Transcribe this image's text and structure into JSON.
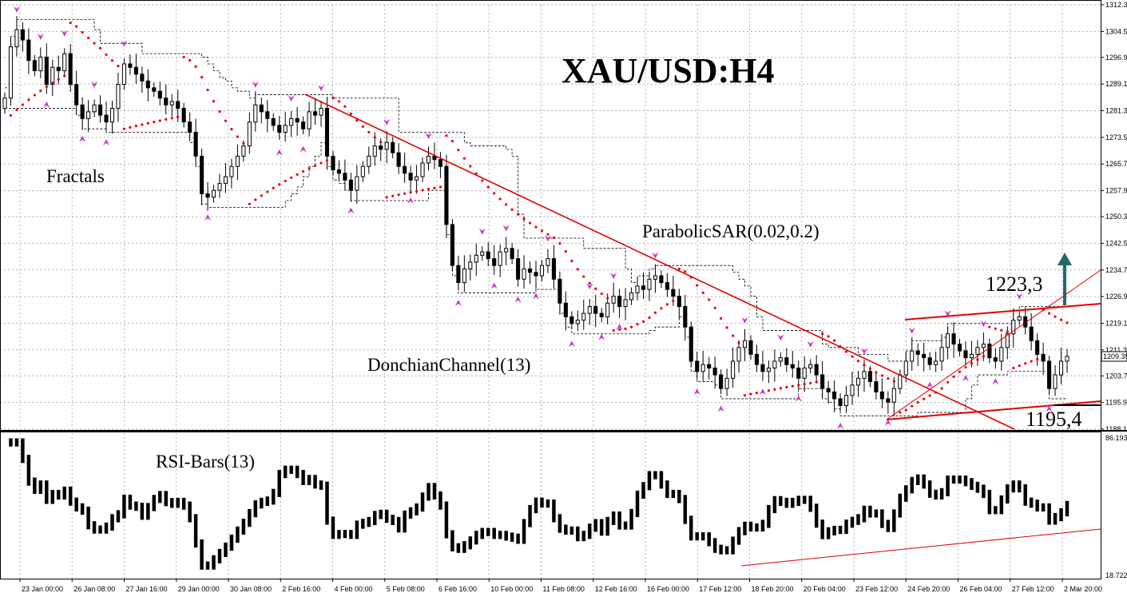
{
  "chart_data": {
    "type": "candlestick",
    "title": "XAU/USD:H4",
    "price_axis": {
      "ticks": [
        "1312.30",
        "1304.50",
        "1296.90",
        "1289.10",
        "1281.30",
        "1273.50",
        "1265.70",
        "1257.90",
        "1250.30",
        "1242.50",
        "1234.70",
        "1226.90",
        "1219.10",
        "1211.30",
        "1203.70",
        "1195.90",
        "1188.10"
      ],
      "current_price": "1209.39",
      "ylim": [
        1188.1,
        1312.3
      ]
    },
    "rsi_axis": {
      "ticks": [
        "86.1933",
        "18.7222"
      ],
      "ylim": [
        18.7222,
        86.1933
      ]
    },
    "time_axis": [
      "23 Jan 00:00",
      "26 Jan 08:00",
      "27 Jan 16:00",
      "29 Jan 00:00",
      "30 Jan 08:00",
      "2 Feb 16:00",
      "4 Feb 00:00",
      "5 Feb 08:00",
      "6 Feb 16:00",
      "10 Feb 00:00",
      "11 Feb 08:00",
      "12 Feb 16:00",
      "16 Feb 00:00",
      "17 Feb 12:00",
      "18 Feb 20:00",
      "20 Feb 04:00",
      "23 Feb 12:00",
      "24 Feb 20:00",
      "26 Feb 04:00",
      "27 Feb 12:00",
      "2 Mar 20:00"
    ],
    "annotations": {
      "fractals": "Fractals",
      "parabolic": "ParabolicSAR(0.02,0.2)",
      "donchian": "DonchianChannel(13)",
      "rsi": "RSI-Bars(13)",
      "resistance": "1223,3",
      "support": "1195,4"
    },
    "closes": [
      1285,
      1300,
      1305,
      1302,
      1296,
      1293,
      1297,
      1289,
      1294,
      1293,
      1298,
      1289,
      1283,
      1279,
      1281,
      1283,
      1280,
      1278,
      1282,
      1289,
      1295,
      1294,
      1292,
      1290,
      1288,
      1287,
      1285,
      1283,
      1284,
      1282,
      1278,
      1275,
      1268,
      1257,
      1256,
      1258,
      1260,
      1262,
      1265,
      1268,
      1271,
      1278,
      1283,
      1281,
      1279,
      1277,
      1275,
      1277,
      1279,
      1278,
      1276,
      1281,
      1280,
      1282,
      1268,
      1264,
      1263,
      1261,
      1258,
      1262,
      1265,
      1268,
      1271,
      1270,
      1272,
      1269,
      1265,
      1263,
      1261,
      1262,
      1266,
      1268,
      1267,
      1265,
      1248,
      1236,
      1231,
      1235,
      1237,
      1239,
      1240,
      1238,
      1236,
      1240,
      1241,
      1238,
      1232,
      1235,
      1234,
      1233,
      1236,
      1238,
      1232,
      1225,
      1221,
      1219,
      1220,
      1222,
      1224,
      1222,
      1221,
      1225,
      1227,
      1224,
      1226,
      1228,
      1230,
      1229,
      1232,
      1233,
      1231,
      1229,
      1227,
      1224,
      1218,
      1208,
      1205,
      1207,
      1206,
      1204,
      1200,
      1203,
      1208,
      1212,
      1214,
      1210,
      1207,
      1205,
      1206,
      1208,
      1209,
      1207,
      1206,
      1203,
      1206,
      1207,
      1204,
      1200,
      1199,
      1197,
      1195,
      1198,
      1201,
      1203,
      1205,
      1202,
      1199,
      1197,
      1196,
      1200,
      1204,
      1208,
      1211,
      1210,
      1209,
      1207,
      1208,
      1212,
      1216,
      1213,
      1211,
      1209,
      1210,
      1212,
      1213,
      1209,
      1208,
      1212,
      1216,
      1220,
      1221,
      1218,
      1214,
      1210,
      1208,
      1200,
      1204,
      1208,
      1209.4
    ]
  },
  "colors": {
    "trend_line": "#e00000",
    "channel_line": "#e00000",
    "psar_dot": "#e8000d",
    "fractal": "#cc33cc",
    "arrow": "#1e6a6a",
    "grid": "#b0b0b0",
    "candle": "#000000",
    "rsi_bar": "#000000"
  }
}
